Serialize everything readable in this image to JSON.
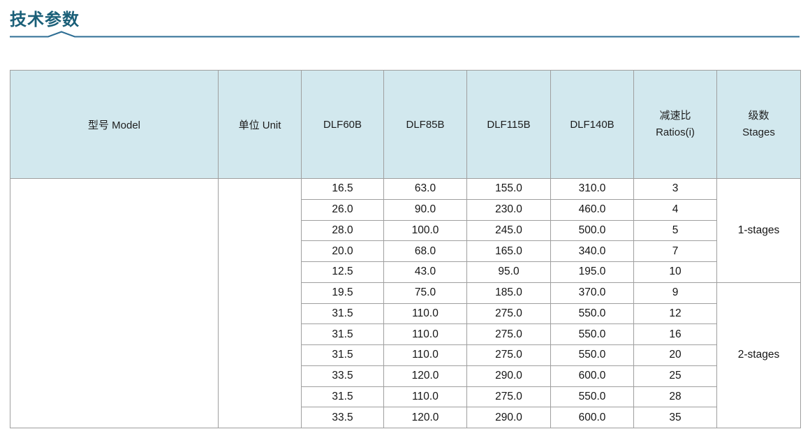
{
  "page": {
    "title": "技术参数"
  },
  "theme": {
    "title_color": "#1a5f78",
    "underline_color": "#2e6e94",
    "header_bg": "#d2e8ee",
    "border_color": "#9f9f9f"
  },
  "table": {
    "columns": [
      {
        "id": "model",
        "label": "型号 Model"
      },
      {
        "id": "unit",
        "label": "单位 Unit"
      },
      {
        "id": "dlf60b",
        "label": "DLF60B"
      },
      {
        "id": "dlf85b",
        "label": "DLF85B"
      },
      {
        "id": "dlf115b",
        "label": "DLF115B"
      },
      {
        "id": "dlf140b",
        "label": "DLF140B"
      },
      {
        "id": "ratios",
        "label": "减速比",
        "label2": "Ratios(i)"
      },
      {
        "id": "stages",
        "label": "级数",
        "label2": "Stages"
      }
    ],
    "model_cell": "",
    "unit_cell": "",
    "groups": [
      {
        "stage_label": "1-stages",
        "rows": [
          [
            "16.5",
            "63.0",
            "155.0",
            "310.0",
            "3"
          ],
          [
            "26.0",
            "90.0",
            "230.0",
            "460.0",
            "4"
          ],
          [
            "28.0",
            "100.0",
            "245.0",
            "500.0",
            "5"
          ],
          [
            "20.0",
            "68.0",
            "165.0",
            "340.0",
            "7"
          ],
          [
            "12.5",
            "43.0",
            "95.0",
            "195.0",
            "10"
          ]
        ]
      },
      {
        "stage_label": "2-stages",
        "rows": [
          [
            "19.5",
            "75.0",
            "185.0",
            "370.0",
            "9"
          ],
          [
            "31.5",
            "110.0",
            "275.0",
            "550.0",
            "12"
          ],
          [
            "31.5",
            "110.0",
            "275.0",
            "550.0",
            "16"
          ],
          [
            "31.5",
            "110.0",
            "275.0",
            "550.0",
            "20"
          ],
          [
            "33.5",
            "120.0",
            "290.0",
            "600.0",
            "25"
          ],
          [
            "31.5",
            "110.0",
            "275.0",
            "550.0",
            "28"
          ],
          [
            "33.5",
            "120.0",
            "290.0",
            "600.0",
            "35"
          ]
        ]
      }
    ]
  }
}
